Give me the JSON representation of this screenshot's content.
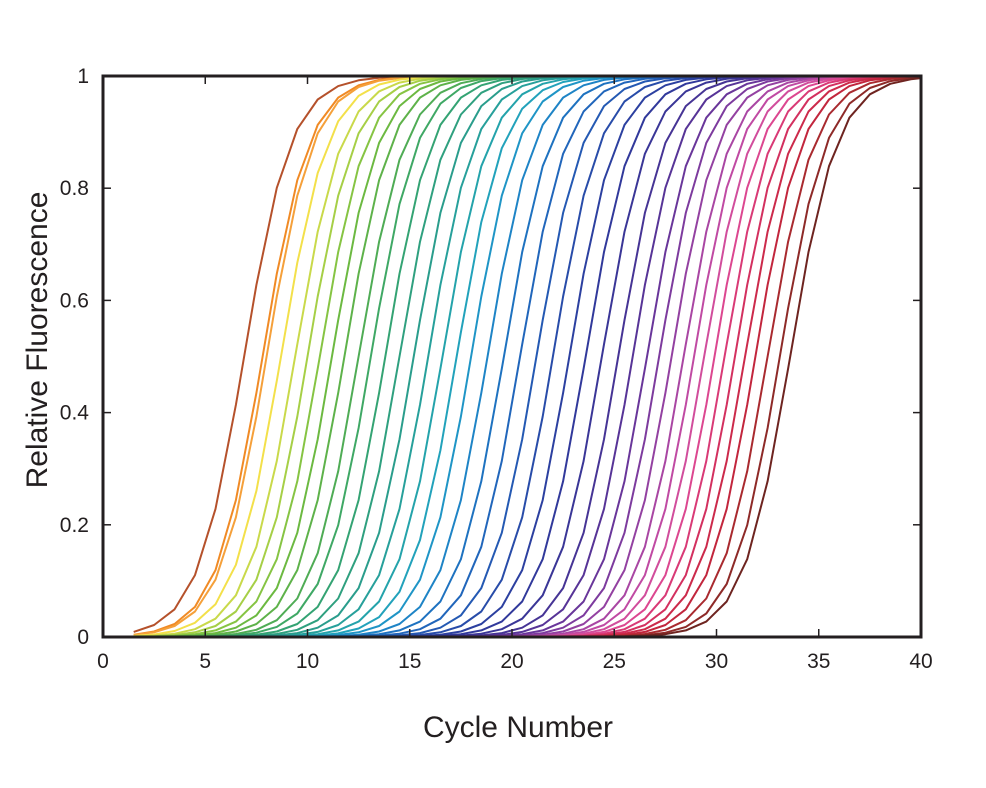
{
  "chart_data": {
    "type": "line",
    "title": "",
    "xlabel": "Cycle Number",
    "ylabel": "Relative Fluorescence",
    "xlim": [
      0,
      40
    ],
    "ylim": [
      0,
      1
    ],
    "x_ticks": [
      "0",
      "5",
      "10",
      "15",
      "20",
      "25",
      "30",
      "35",
      "40"
    ],
    "y_ticks": [
      "0",
      "0.2",
      "0.4",
      "0.6",
      "0.8",
      "1"
    ],
    "grid": false,
    "legend": "none",
    "x": [
      1.5,
      2.5,
      3.5,
      4.5,
      5.5,
      6.5,
      7.5,
      8.5,
      9.5,
      10.5,
      11.5,
      12.5,
      13.5,
      14.5,
      15.5,
      16.5,
      17.5,
      18.5,
      19.5,
      20.5,
      21.5,
      22.5,
      23.5,
      24.5,
      25.5,
      26.5,
      27.5,
      28.5,
      29.5,
      30.5,
      31.5,
      32.5,
      33.5,
      34.5,
      35.5,
      36.5,
      37.5,
      38.5,
      39.5,
      40
    ],
    "curve_model": "sigmoid",
    "curve_slope": 1.15,
    "series": [
      {
        "midpoint": 6.9,
        "color": "#b5512b"
      },
      {
        "midpoint": 7.8,
        "color": "#f08a25"
      },
      {
        "midpoint": 8.0,
        "color": "#f5a03a"
      },
      {
        "midpoint": 8.7,
        "color": "#f3e04a"
      },
      {
        "midpoint": 9.4,
        "color": "#c9d94a"
      },
      {
        "midpoint": 10.0,
        "color": "#a6cf46"
      },
      {
        "midpoint": 10.6,
        "color": "#86c443"
      },
      {
        "midpoint": 11.2,
        "color": "#6cb941"
      },
      {
        "midpoint": 11.8,
        "color": "#5eb24a"
      },
      {
        "midpoint": 12.5,
        "color": "#4fac55"
      },
      {
        "midpoint": 13.1,
        "color": "#3fa865"
      },
      {
        "midpoint": 13.8,
        "color": "#34a373"
      },
      {
        "midpoint": 14.5,
        "color": "#2fa07f"
      },
      {
        "midpoint": 15.2,
        "color": "#2a9d8c"
      },
      {
        "midpoint": 15.9,
        "color": "#27a09b"
      },
      {
        "midpoint": 16.6,
        "color": "#24a3ab"
      },
      {
        "midpoint": 17.3,
        "color": "#22a2bb"
      },
      {
        "midpoint": 18.0,
        "color": "#1f95c6"
      },
      {
        "midpoint": 18.8,
        "color": "#1e84c6"
      },
      {
        "midpoint": 19.6,
        "color": "#1e72c0"
      },
      {
        "midpoint": 20.4,
        "color": "#2166bb"
      },
      {
        "midpoint": 21.2,
        "color": "#2459b3"
      },
      {
        "midpoint": 22.0,
        "color": "#284ca9"
      },
      {
        "midpoint": 22.8,
        "color": "#2c40a0"
      },
      {
        "midpoint": 23.6,
        "color": "#31399b"
      },
      {
        "midpoint": 24.4,
        "color": "#3a3697"
      },
      {
        "midpoint": 25.2,
        "color": "#463495"
      },
      {
        "midpoint": 25.9,
        "color": "#573497"
      },
      {
        "midpoint": 26.6,
        "color": "#69369a"
      },
      {
        "midpoint": 27.2,
        "color": "#7d3b9e"
      },
      {
        "midpoint": 27.8,
        "color": "#9341a1"
      },
      {
        "midpoint": 28.4,
        "color": "#a946a3"
      },
      {
        "midpoint": 28.9,
        "color": "#c04aa3"
      },
      {
        "midpoint": 29.4,
        "color": "#d14d9c"
      },
      {
        "midpoint": 29.9,
        "color": "#dc4790"
      },
      {
        "midpoint": 30.4,
        "color": "#d93a76"
      },
      {
        "midpoint": 30.9,
        "color": "#d3305f"
      },
      {
        "midpoint": 31.4,
        "color": "#cc2a4b"
      },
      {
        "midpoint": 31.9,
        "color": "#c2263d"
      },
      {
        "midpoint": 32.5,
        "color": "#a92a2f"
      },
      {
        "midpoint": 33.1,
        "color": "#8e2a28"
      },
      {
        "midpoint": 33.6,
        "color": "#6e2420"
      }
    ]
  }
}
